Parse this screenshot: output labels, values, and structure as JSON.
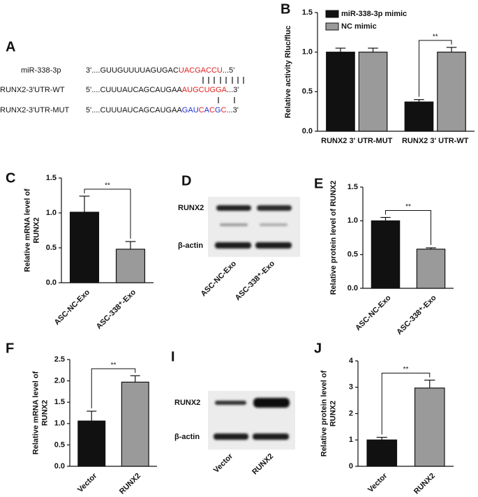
{
  "panel_letters": [
    "A",
    "B",
    "C",
    "D",
    "E",
    "F",
    "I",
    "J"
  ],
  "sequences": [
    {
      "name": "miR-338-3p",
      "segments": [
        {
          "text": "3'....GUUGUUUUAGUGAC",
          "color": "#111111"
        },
        {
          "text": "UACGACCU",
          "color": "#e02020"
        },
        {
          "text": "...5'",
          "color": "#111111"
        }
      ]
    },
    {
      "name": "RUNX2-3'UTR-WT",
      "segments": [
        {
          "text": "5'....CUUUAUCAGCAUGAA",
          "color": "#111111"
        },
        {
          "text": "AUGCUGGA",
          "color": "#e02020"
        },
        {
          "text": "...3'",
          "color": "#111111"
        }
      ]
    },
    {
      "name": "RUNX2-3'UTR-MUT",
      "segments": [
        {
          "text": "5'....CUUUAUCAGCAUGAA",
          "color": "#111111"
        },
        {
          "text": "GAU",
          "color": "#2030d0"
        },
        {
          "text": "C",
          "color": "#e02020"
        },
        {
          "text": "A",
          "color": "#2030d0"
        },
        {
          "text": "C",
          "color": "#e02020"
        },
        {
          "text": "G",
          "color": "#2030d0"
        },
        {
          "text": "C",
          "color": "#e02020"
        },
        {
          "text": "...3'",
          "color": "#111111"
        }
      ]
    }
  ],
  "blots": [
    {
      "rows": [
        "RUNX2",
        "β-actin"
      ],
      "lanes": [
        "ASC-NC-Exo",
        "ASC-338⁺-Exo"
      ]
    },
    {
      "rows": [
        "RUNX2",
        "β-actin"
      ],
      "lanes": [
        "Vector",
        "RUNX2"
      ]
    }
  ],
  "chart_data": [
    {
      "type": "bar",
      "ylabel": [
        "Relative activity Rluc/fluc"
      ],
      "categories": [
        "RUNX2 3' UTR-MUT",
        "RUNX2 3' UTR-WT"
      ],
      "series": [
        {
          "name": "miR-338-3p mimic",
          "color": "#111111",
          "values": [
            1.0,
            0.37
          ],
          "errors": [
            0.05,
            0.03
          ]
        },
        {
          "name": "NC mimic",
          "color": "#9a9a9a",
          "values": [
            1.0,
            1.0
          ],
          "errors": [
            0.05,
            0.06
          ]
        }
      ],
      "ylim": [
        0,
        1.5
      ],
      "yticks": [
        {
          "value": 0,
          "label": "0.0"
        },
        0.5,
        {
          "value": 1,
          "label": "1.0"
        },
        1.5
      ],
      "annotations": [
        "**"
      ]
    },
    {
      "type": "bar",
      "ylabel": [
        "Relative mRNA level of",
        "RUNX2"
      ],
      "categories": [
        "ASC-NC-Exo",
        "ASC-338⁺-Exo"
      ],
      "values": [
        1.01,
        0.48
      ],
      "errors": [
        0.23,
        0.11
      ],
      "colors": [
        "#111111",
        "#9a9a9a"
      ],
      "ylim": [
        0,
        1.5
      ],
      "yticks": [
        {
          "value": 0,
          "label": "0.0"
        },
        0.5,
        {
          "value": 1,
          "label": "1.0"
        },
        1.5
      ],
      "annotations": [
        "**"
      ]
    },
    {
      "type": "bar",
      "ylabel": [
        "Relative protein level of RUNX2"
      ],
      "categories": [
        "ASC-NC-Exo",
        "ASC-338⁺-Exo"
      ],
      "values": [
        1.0,
        0.58
      ],
      "errors": [
        0.05,
        0.02
      ],
      "colors": [
        "#111111",
        "#9a9a9a"
      ],
      "ylim": [
        0,
        1.5
      ],
      "yticks": [
        {
          "value": 0,
          "label": "0.0"
        },
        0.5,
        {
          "value": 1,
          "label": "1.0"
        },
        1.5
      ],
      "annotations": [
        "**"
      ]
    },
    {
      "type": "bar",
      "ylabel": [
        "Relative mRNA level of",
        "RUNX2"
      ],
      "categories": [
        "Vector",
        "RUNX2"
      ],
      "values": [
        1.06,
        1.97
      ],
      "errors": [
        0.23,
        0.15
      ],
      "colors": [
        "#111111",
        "#9a9a9a"
      ],
      "ylim": [
        0,
        2.5
      ],
      "yticks": [
        {
          "value": 0,
          "label": "0.0"
        },
        0.5,
        {
          "value": 1,
          "label": "1.0"
        },
        1.5,
        {
          "value": 2,
          "label": "2.0"
        },
        2.5
      ],
      "annotations": [
        "**"
      ]
    },
    {
      "type": "bar",
      "ylabel": [
        "Relative protein level of",
        "RUNX2"
      ],
      "categories": [
        "Vector",
        "RUNX2"
      ],
      "values": [
        1.0,
        2.97
      ],
      "errors": [
        0.1,
        0.3
      ],
      "colors": [
        "#111111",
        "#9a9a9a"
      ],
      "ylim": [
        0,
        4
      ],
      "yticks": [
        0,
        1,
        2,
        3,
        4
      ],
      "annotations": [
        "**"
      ]
    }
  ]
}
